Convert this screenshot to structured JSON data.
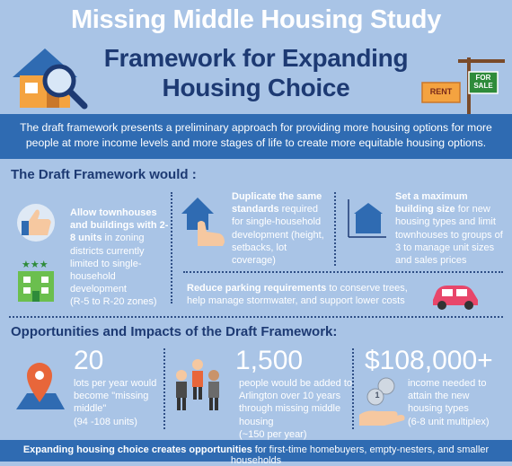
{
  "header": {
    "title_line1": "Missing Middle Housing Study",
    "title_line2": "Framework for Expanding",
    "title_line3": "Housing Choice",
    "sign_rent": "RENT",
    "sign_for_sale": "FOR SALE"
  },
  "intro": "The draft framework presents a preliminary approach for providing more housing options for more people at more income levels and more stages of life to create more equitable housing options.",
  "framework": {
    "heading": "The Draft Framework would :",
    "item1_bold": "Allow townhouses and buildings with 2-8 units",
    "item1_rest": "in zoning districts currently limited to single-household development",
    "item1_zones": "(R-5 to R-20 zones)",
    "item2_bold": "Duplicate the same standards",
    "item2_rest": "required for single-household development (height, setbacks, lot coverage)",
    "item3_bold": "Set a maximum building size",
    "item3_rest": "for new housing types and limit townhouses to groups of 3 to manage unit sizes and sales prices",
    "item4_bold": "Reduce parking requirements",
    "item4_rest": "to conserve trees, help manage stormwater, and support lower costs"
  },
  "impacts": {
    "heading": "Opportunities and Impacts of the Draft Framework:",
    "stat1_number": "20",
    "stat1_text": "lots per year would become \"missing middle\"",
    "stat1_range": "(94 -108 units)",
    "stat2_number": "1,500",
    "stat2_text": "people would be added to Arlington over 10 years through missing middle housing",
    "stat2_range": "(~150 per year)",
    "stat3_number": "$108,000+",
    "stat3_text": "income needed to attain the new housing types",
    "stat3_range": "(6-8 unit multiplex)",
    "coin_label": "1"
  },
  "footer": {
    "bold": "Expanding housing choice creates opportunities",
    "rest": "for first-time homebuyers, empty-nesters, and smaller households"
  },
  "colors": {
    "background": "#a9c4e6",
    "band": "#2f6bb2",
    "navy": "#1d3a73",
    "accent_orange": "#f4a340",
    "accent_green": "#6bbf4e",
    "car_pink": "#e8466a"
  }
}
